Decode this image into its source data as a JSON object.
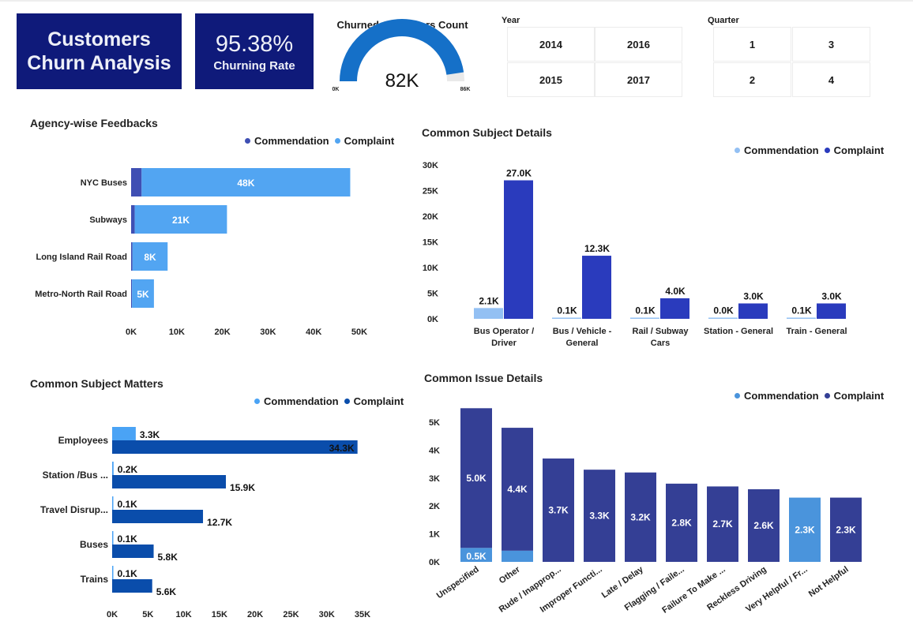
{
  "header": {
    "title_line1": "Customers",
    "title_line2": "Churn Analysis",
    "churn_rate": "95.38%",
    "churn_rate_label": "Churning Rate"
  },
  "gauge": {
    "title": "Churned Customers Count",
    "value_label": "82K",
    "value": 82,
    "min": 0,
    "max": 86,
    "min_label": "0K",
    "max_label": "86K",
    "fill_color": "#1570c8",
    "track_color": "#e9e9e9"
  },
  "slicers": {
    "year": {
      "label": "Year",
      "options": [
        "2014",
        "2016",
        "2015",
        "2017"
      ]
    },
    "quarter": {
      "label": "Quarter",
      "options": [
        "1",
        "3",
        "2",
        "4"
      ]
    }
  },
  "chart_data": [
    {
      "id": "agency",
      "type": "bar",
      "orientation": "horizontal",
      "stacked": true,
      "title": "Agency-wise Feedbacks",
      "categories": [
        "NYC Buses",
        "Subways",
        "Long Island Rail Road",
        "Metro-North Rail Road"
      ],
      "series": [
        {
          "name": "Commendation",
          "color": "#3f4fb3",
          "values": [
            2.3,
            0.8,
            0.3,
            0.2
          ]
        },
        {
          "name": "Complaint",
          "color": "#52a5f2",
          "values": [
            48,
            21,
            8,
            5
          ]
        }
      ],
      "data_labels": [
        "48K",
        "21K",
        "8K",
        "5K"
      ],
      "xticks": [
        "0K",
        "10K",
        "20K",
        "30K",
        "40K",
        "50K"
      ],
      "xlim": [
        0,
        50
      ],
      "units": "thousands",
      "legend": "top-right"
    },
    {
      "id": "subject_details",
      "type": "bar",
      "orientation": "vertical",
      "stacked": false,
      "title": "Common Subject Details",
      "categories": [
        [
          "Bus Operator /",
          "Driver"
        ],
        [
          "Bus / Vehicle -",
          "General"
        ],
        [
          "Rail / Subway",
          "Cars"
        ],
        [
          "Station - General"
        ],
        [
          "Train - General"
        ]
      ],
      "series": [
        {
          "name": "Commendation",
          "color": "#93c0f3",
          "values": [
            2.1,
            0.1,
            0.1,
            0.0,
            0.1
          ],
          "labels": [
            "2.1K",
            "0.1K",
            "0.1K",
            "0.0K",
            "0.1K"
          ]
        },
        {
          "name": "Complaint",
          "color": "#2a3bbd",
          "values": [
            27.0,
            12.3,
            4.0,
            3.0,
            3.0
          ],
          "labels": [
            "27.0K",
            "12.3K",
            "4.0K",
            "3.0K",
            "3.0K"
          ]
        }
      ],
      "yticks": [
        "0K",
        "5K",
        "10K",
        "15K",
        "20K",
        "25K",
        "30K"
      ],
      "ylim": [
        0,
        30
      ],
      "units": "thousands",
      "legend": "top-right"
    },
    {
      "id": "subject_matters",
      "type": "bar",
      "orientation": "horizontal",
      "stacked": false,
      "title": "Common Subject Matters",
      "categories": [
        "Employees",
        "Station /Bus ...",
        "Travel Disrup...",
        "Buses",
        "Trains"
      ],
      "series": [
        {
          "name": "Commendation",
          "color": "#4aa3f5",
          "values": [
            3.3,
            0.2,
            0.1,
            0.1,
            0.1
          ],
          "labels": [
            "3.3K",
            "0.2K",
            "0.1K",
            "0.1K",
            "0.1K"
          ]
        },
        {
          "name": "Complaint",
          "color": "#0a4dab",
          "values": [
            34.3,
            15.9,
            12.7,
            5.8,
            5.6
          ],
          "labels": [
            "34.3K",
            "15.9K",
            "12.7K",
            "5.8K",
            "5.6K"
          ]
        }
      ],
      "xticks": [
        "0K",
        "5K",
        "10K",
        "15K",
        "20K",
        "25K",
        "30K",
        "35K"
      ],
      "xlim": [
        0,
        35
      ],
      "units": "thousands",
      "legend": "top-right"
    },
    {
      "id": "issue_details",
      "type": "bar",
      "orientation": "vertical",
      "stacked": true,
      "title": "Common Issue Details",
      "categories": [
        "Unspecified",
        "Other",
        "Rude / Inapprop...",
        "Improper Functi...",
        "Late / Delay",
        "Flagging / Faile...",
        "Failure To Make ...",
        "Reckless Driving",
        "Very Helpful / Fr...",
        "Not Helpful"
      ],
      "series": [
        {
          "name": "Commendation",
          "color": "#4a94dc",
          "values": [
            0.5,
            0.4,
            0,
            0,
            0,
            0,
            0,
            0,
            2.3,
            0
          ],
          "labels": [
            "0.5K",
            "",
            "",
            "",
            "",
            "",
            "",
            "",
            "2.3K",
            ""
          ]
        },
        {
          "name": "Complaint",
          "color": "#343f95",
          "values": [
            5.0,
            4.4,
            3.7,
            3.3,
            3.2,
            2.8,
            2.7,
            2.6,
            0,
            2.3
          ],
          "labels": [
            "5.0K",
            "4.4K",
            "3.7K",
            "3.3K",
            "3.2K",
            "2.8K",
            "2.7K",
            "2.6K",
            "",
            "2.3K"
          ]
        }
      ],
      "yticks": [
        "0K",
        "1K",
        "2K",
        "3K",
        "4K",
        "5K"
      ],
      "ylim": [
        0,
        5.5
      ],
      "units": "thousands",
      "legend": "top-right"
    }
  ]
}
